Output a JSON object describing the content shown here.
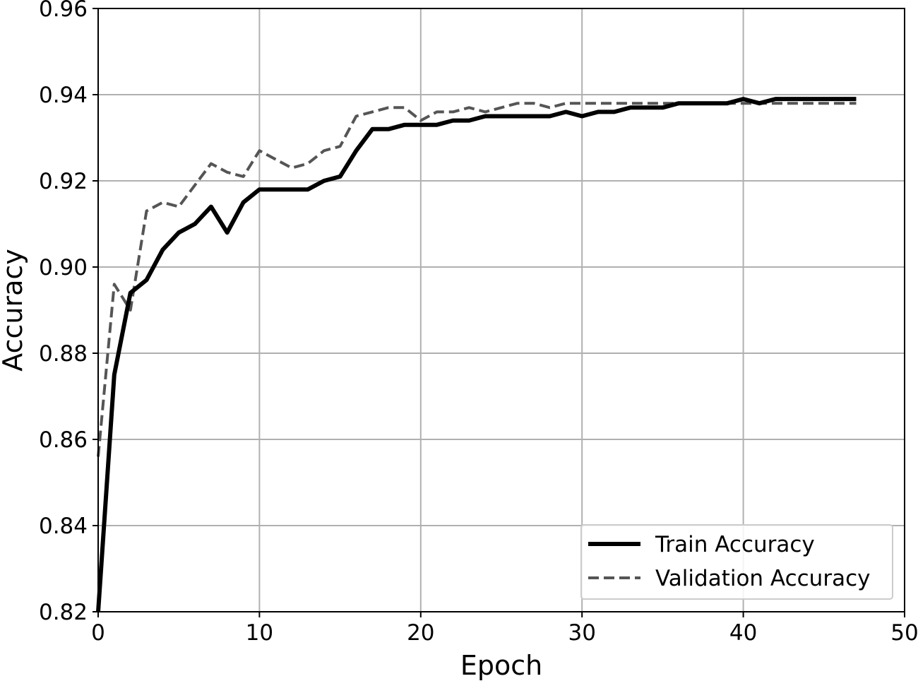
{
  "chart_data": {
    "type": "line",
    "xlabel": "Epoch",
    "ylabel": "Accuracy",
    "xlim": [
      0,
      50
    ],
    "ylim": [
      0.82,
      0.96
    ],
    "xticks": [
      "0",
      "10",
      "20",
      "30",
      "40",
      "50"
    ],
    "yticks": [
      "0.82",
      "0.84",
      "0.86",
      "0.88",
      "0.90",
      "0.92",
      "0.94",
      "0.96"
    ],
    "grid": true,
    "legend_position": "lower right",
    "series": [
      {
        "name": "Train Accuracy",
        "style": "solid",
        "color": "#000000",
        "x": [
          0,
          1,
          2,
          3,
          4,
          5,
          6,
          7,
          8,
          9,
          10,
          11,
          12,
          13,
          14,
          15,
          16,
          17,
          18,
          19,
          20,
          21,
          22,
          23,
          24,
          25,
          26,
          27,
          28,
          29,
          30,
          31,
          32,
          33,
          34,
          35,
          36,
          37,
          38,
          39,
          40,
          41,
          42,
          43,
          44,
          45,
          46,
          47
        ],
        "values": [
          0.82,
          0.875,
          0.894,
          0.897,
          0.904,
          0.908,
          0.91,
          0.914,
          0.908,
          0.915,
          0.918,
          0.918,
          0.918,
          0.918,
          0.92,
          0.921,
          0.927,
          0.932,
          0.932,
          0.933,
          0.933,
          0.933,
          0.934,
          0.934,
          0.935,
          0.935,
          0.935,
          0.935,
          0.935,
          0.936,
          0.935,
          0.936,
          0.936,
          0.937,
          0.937,
          0.937,
          0.938,
          0.938,
          0.938,
          0.938,
          0.939,
          0.938,
          0.939,
          0.939,
          0.939,
          0.939,
          0.939,
          0.939
        ]
      },
      {
        "name": "Validation Accuracy",
        "style": "dashed",
        "color": "#555555",
        "x": [
          0,
          1,
          2,
          3,
          4,
          5,
          6,
          7,
          8,
          9,
          10,
          11,
          12,
          13,
          14,
          15,
          16,
          17,
          18,
          19,
          20,
          21,
          22,
          23,
          24,
          25,
          26,
          27,
          28,
          29,
          30,
          31,
          32,
          33,
          34,
          35,
          36,
          37,
          38,
          39,
          40,
          41,
          42,
          43,
          44,
          45,
          46,
          47
        ],
        "values": [
          0.856,
          0.896,
          0.89,
          0.913,
          0.915,
          0.914,
          0.919,
          0.924,
          0.922,
          0.921,
          0.927,
          0.925,
          0.923,
          0.924,
          0.927,
          0.928,
          0.935,
          0.936,
          0.937,
          0.937,
          0.934,
          0.936,
          0.936,
          0.937,
          0.936,
          0.937,
          0.938,
          0.938,
          0.937,
          0.938,
          0.938,
          0.938,
          0.938,
          0.938,
          0.938,
          0.938,
          0.938,
          0.938,
          0.938,
          0.938,
          0.938,
          0.938,
          0.938,
          0.938,
          0.938,
          0.938,
          0.938,
          0.938
        ]
      }
    ]
  }
}
